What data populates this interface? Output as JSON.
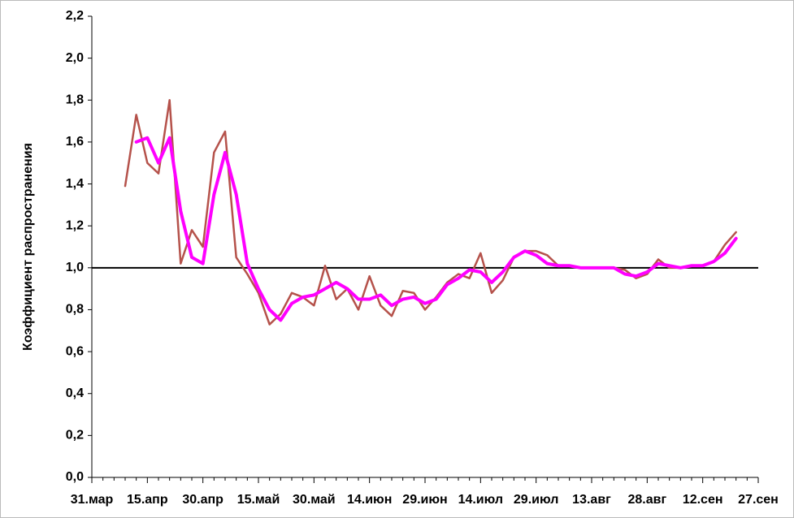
{
  "chart_data": {
    "type": "line",
    "ylabel": "Коэффициент  распространения",
    "categories": [
      "31.мар",
      null,
      null,
      null,
      null,
      "15.апр",
      null,
      null,
      null,
      null,
      "30.апр",
      null,
      null,
      null,
      null,
      "15.май",
      null,
      null,
      null,
      null,
      "30.май",
      null,
      null,
      null,
      null,
      "14.июн",
      null,
      null,
      null,
      null,
      "29.июн",
      null,
      null,
      null,
      null,
      "14.июл",
      null,
      null,
      null,
      null,
      "29.июл",
      null,
      null,
      null,
      null,
      "13.авг",
      null,
      null,
      null,
      null,
      "28.авг",
      null,
      null,
      null,
      null,
      "12.сен",
      null,
      null,
      null,
      null,
      "27.сен"
    ],
    "series": [
      {
        "color": "#b5524b",
        "values": [
          null,
          null,
          null,
          1.39,
          1.73,
          1.5,
          1.45,
          1.8,
          1.02,
          1.18,
          1.1,
          1.55,
          1.65,
          1.05,
          0.97,
          0.88,
          0.73,
          0.78,
          0.88,
          0.86,
          0.82,
          1.01,
          0.85,
          0.9,
          0.8,
          0.96,
          0.82,
          0.77,
          0.89,
          0.88,
          0.8,
          0.86,
          0.93,
          0.97,
          0.95,
          1.07,
          0.88,
          0.94,
          1.05,
          1.08,
          1.08,
          1.06,
          1.01,
          1.01,
          1.0,
          1.0,
          1.0,
          1.0,
          0.99,
          0.95,
          0.97,
          1.04,
          1.0,
          1.0,
          1.01,
          1.01,
          1.03,
          1.11,
          1.17,
          null,
          null
        ]
      },
      {
        "color": "#ff00ff",
        "values": [
          null,
          null,
          null,
          null,
          1.6,
          1.62,
          1.5,
          1.62,
          1.27,
          1.05,
          1.02,
          1.35,
          1.55,
          1.35,
          1.02,
          0.9,
          0.8,
          0.75,
          0.83,
          0.86,
          0.87,
          0.9,
          0.93,
          0.9,
          0.85,
          0.85,
          0.87,
          0.82,
          0.85,
          0.86,
          0.83,
          0.85,
          0.92,
          0.95,
          0.99,
          0.98,
          0.93,
          0.98,
          1.05,
          1.08,
          1.06,
          1.02,
          1.01,
          1.01,
          1.0,
          1.0,
          1.0,
          1.0,
          0.97,
          0.96,
          0.98,
          1.02,
          1.01,
          1.0,
          1.01,
          1.01,
          1.03,
          1.07,
          1.14,
          null,
          null
        ]
      }
    ],
    "reference_line": 1.0,
    "ylim": [
      0,
      2.2
    ],
    "yticks": [
      {
        "value": 0,
        "label": "0,0"
      },
      {
        "value": 0.2,
        "label": "0,2"
      },
      {
        "value": 0.4,
        "label": "0,4"
      },
      {
        "value": 0.6,
        "label": "0,6"
      },
      {
        "value": 0.8,
        "label": "0,8"
      },
      {
        "value": 1.0,
        "label": "1,0"
      },
      {
        "value": 1.2,
        "label": "1,2"
      },
      {
        "value": 1.4,
        "label": "1,4"
      },
      {
        "value": 1.6,
        "label": "1,6"
      },
      {
        "value": 1.8,
        "label": "1,8"
      },
      {
        "value": 2.0,
        "label": "2,0"
      },
      {
        "value": 2.2,
        "label": "2,2"
      }
    ],
    "grid": false
  }
}
